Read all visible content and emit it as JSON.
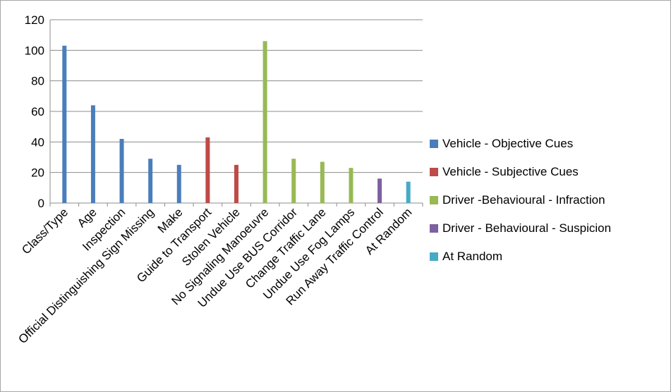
{
  "chart_data": {
    "type": "bar",
    "title": "",
    "xlabel": "",
    "ylabel": "",
    "ylim": [
      0,
      120
    ],
    "yticks": [
      0,
      20,
      40,
      60,
      80,
      100,
      120
    ],
    "grid": true,
    "legend_position": "right",
    "categories": [
      "Class/Type",
      "Age",
      "Inspection",
      "Official Distinguishing Sign Missing",
      "Make",
      "Guide to Transport",
      "Stolen Vehicle",
      "No Signaling Manoeuvre",
      "Undue Use BUS Corridor",
      "Change Traffic Lane",
      "Undue Use Fog Lamps",
      "Run Away Traffic Control",
      "At Random"
    ],
    "series": [
      {
        "name": "Vehicle - Objective Cues",
        "color": "#4a7ebb",
        "values": [
          103,
          64,
          42,
          29,
          25,
          null,
          null,
          null,
          null,
          null,
          null,
          null,
          null
        ]
      },
      {
        "name": "Vehicle - Subjective Cues",
        "color": "#be4b48",
        "values": [
          null,
          null,
          null,
          null,
          null,
          43,
          25,
          null,
          null,
          null,
          null,
          null,
          null
        ]
      },
      {
        "name": "Driver -Behavioural - Infraction",
        "color": "#98b954",
        "values": [
          null,
          null,
          null,
          null,
          null,
          null,
          null,
          106,
          29,
          27,
          23,
          null,
          null
        ]
      },
      {
        "name": "Driver - Behavioural - Suspicion",
        "color": "#7d60a0",
        "values": [
          null,
          null,
          null,
          null,
          null,
          null,
          null,
          null,
          null,
          null,
          null,
          16,
          null
        ]
      },
      {
        "name": "At Random",
        "color": "#46aac5",
        "values": [
          null,
          null,
          null,
          null,
          null,
          null,
          null,
          null,
          null,
          null,
          null,
          null,
          14
        ]
      }
    ]
  }
}
